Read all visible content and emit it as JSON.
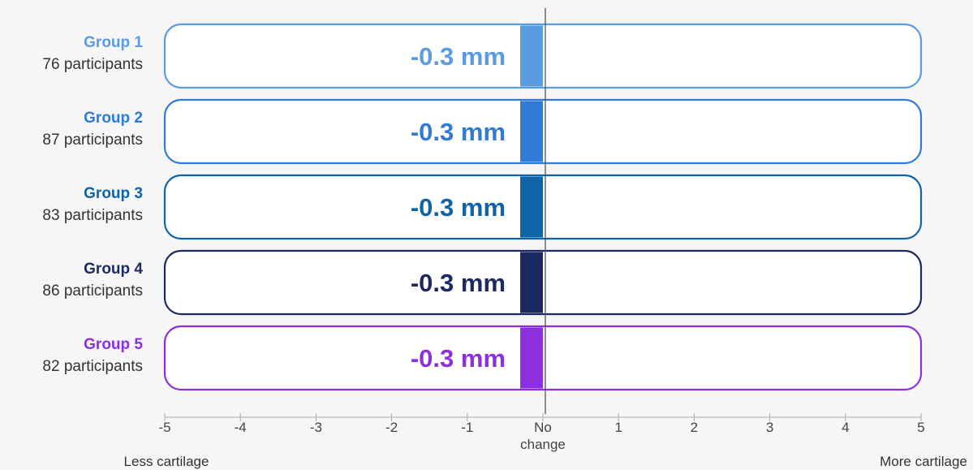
{
  "chart_data": {
    "type": "bar",
    "categories": [
      "Group 1",
      "Group 2",
      "Group 3",
      "Group 4",
      "Group 5"
    ],
    "participants": [
      "76 participants",
      "87 participants",
      "83 participants",
      "86 participants",
      "82 participants"
    ],
    "values": [
      -0.3,
      -0.3,
      -0.3,
      -0.3,
      -0.3
    ],
    "value_labels": [
      "-0.3 mm",
      "-0.3 mm",
      "-0.3 mm",
      "-0.3 mm",
      "-0.3 mm"
    ],
    "colors": [
      "#5b9be1",
      "#2f7bd6",
      "#0f63a9",
      "#1d2a5f",
      "#8b2fe0"
    ],
    "xlim": [
      -5,
      5
    ],
    "x_ticks": [
      -5,
      -4,
      -3,
      -2,
      -1,
      0,
      1,
      2,
      3,
      4,
      5
    ],
    "x_tick_labels": [
      "-5",
      "-4",
      "-3",
      "-2",
      "-1",
      "No",
      "1",
      "2",
      "3",
      "4",
      "5"
    ],
    "zero_tick_sublabel": "change",
    "left_label": "Less cartilage",
    "right_label": "More cartilage",
    "grid": false
  }
}
